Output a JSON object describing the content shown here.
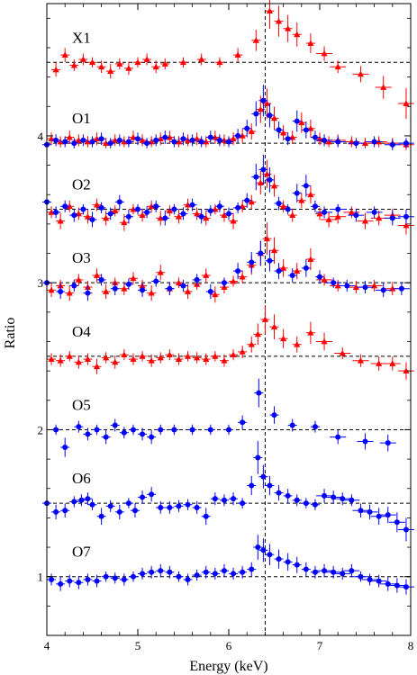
{
  "chart_data": {
    "type": "scatter",
    "xlabel": "Energy (keV)",
    "ylabel": "Ratio",
    "xlim": [
      4,
      8
    ],
    "ylim": [
      0.6,
      4.9
    ],
    "xticks": [
      4,
      5,
      6,
      7,
      8
    ],
    "yticks": [
      1,
      2,
      3,
      4
    ],
    "vertical_line_x": 6.4,
    "grid": false,
    "colors": {
      "red": "#ff0000",
      "blue": "#0000ff",
      "axis": "#000000"
    },
    "panels": [
      {
        "label": "X1",
        "baseline": 4.5,
        "series": [
          {
            "color": "red",
            "marker": "triangle",
            "x": [
              4.1,
              4.2,
              4.3,
              4.4,
              4.5,
              4.6,
              4.7,
              4.8,
              4.9,
              5.0,
              5.1,
              5.2,
              5.3,
              5.5,
              5.7,
              5.9,
              6.1,
              6.3,
              6.45,
              6.55,
              6.65,
              6.75,
              6.9,
              7.05,
              7.2,
              7.45,
              7.7,
              7.95
            ],
            "y": [
              4.45,
              4.55,
              4.48,
              4.52,
              4.5,
              4.47,
              4.44,
              4.49,
              4.46,
              4.5,
              4.52,
              4.47,
              4.49,
              4.5,
              4.52,
              4.5,
              4.55,
              4.65,
              4.85,
              4.78,
              4.73,
              4.69,
              4.63,
              4.56,
              4.47,
              4.42,
              4.33,
              4.22
            ]
          }
        ]
      },
      {
        "label": "O1",
        "baseline": 3.95,
        "series": [
          {
            "color": "red",
            "marker": "triangle",
            "x": [
              4.05,
              4.15,
              4.25,
              4.35,
              4.45,
              4.55,
              4.65,
              4.75,
              4.85,
              4.95,
              5.05,
              5.15,
              5.25,
              5.35,
              5.45,
              5.55,
              5.65,
              5.75,
              5.85,
              5.95,
              6.05,
              6.15,
              6.25,
              6.35,
              6.42,
              6.5,
              6.6,
              6.7,
              6.8,
              6.9,
              7.0,
              7.1,
              7.2,
              7.35,
              7.5,
              7.65,
              7.8,
              7.95
            ],
            "y": [
              3.98,
              3.96,
              3.99,
              3.97,
              3.96,
              3.98,
              3.95,
              3.97,
              3.96,
              3.99,
              3.97,
              3.96,
              3.98,
              3.99,
              3.96,
              3.97,
              3.98,
              3.96,
              3.99,
              3.97,
              3.98,
              4.0,
              4.03,
              4.18,
              4.22,
              4.12,
              4.02,
              3.99,
              4.09,
              4.05,
              3.98,
              3.96,
              3.97,
              3.96,
              3.95,
              3.96,
              3.95,
              3.94
            ]
          },
          {
            "color": "blue",
            "marker": "circle",
            "x": [
              4.0,
              4.1,
              4.2,
              4.3,
              4.4,
              4.5,
              4.6,
              4.7,
              4.8,
              4.9,
              5.0,
              5.1,
              5.2,
              5.3,
              5.4,
              5.5,
              5.6,
              5.7,
              5.8,
              5.9,
              6.0,
              6.1,
              6.2,
              6.3,
              6.38,
              6.45,
              6.55,
              6.65,
              6.75,
              6.85,
              6.95,
              7.05,
              7.2,
              7.4,
              7.6,
              7.8,
              7.95
            ],
            "y": [
              3.94,
              3.97,
              3.96,
              3.95,
              3.97,
              3.96,
              3.98,
              3.95,
              3.97,
              3.96,
              3.98,
              3.95,
              3.97,
              3.99,
              3.96,
              3.98,
              3.97,
              3.96,
              3.99,
              3.97,
              3.96,
              4.0,
              4.05,
              4.15,
              4.24,
              4.14,
              4.04,
              3.98,
              4.1,
              4.04,
              3.99,
              3.97,
              3.96,
              3.95,
              3.96,
              3.94,
              3.95
            ]
          }
        ]
      },
      {
        "label": "O2",
        "baseline": 3.5,
        "series": [
          {
            "color": "red",
            "marker": "triangle",
            "x": [
              4.05,
              4.15,
              4.25,
              4.35,
              4.45,
              4.55,
              4.65,
              4.75,
              4.85,
              4.95,
              5.05,
              5.15,
              5.25,
              5.35,
              5.45,
              5.55,
              5.65,
              5.75,
              5.85,
              5.95,
              6.05,
              6.15,
              6.25,
              6.35,
              6.42,
              6.5,
              6.6,
              6.7,
              6.8,
              6.9,
              7.0,
              7.1,
              7.2,
              7.35,
              7.5,
              7.65,
              7.8,
              7.95
            ],
            "y": [
              3.48,
              3.42,
              3.52,
              3.47,
              3.45,
              3.53,
              3.44,
              3.49,
              3.41,
              3.5,
              3.46,
              3.52,
              3.44,
              3.49,
              3.45,
              3.53,
              3.47,
              3.44,
              3.5,
              3.46,
              3.42,
              3.52,
              3.55,
              3.68,
              3.74,
              3.66,
              3.52,
              3.46,
              3.56,
              3.6,
              3.47,
              3.43,
              3.45,
              3.48,
              3.42,
              3.44,
              3.46,
              3.39
            ]
          },
          {
            "color": "blue",
            "marker": "circle",
            "x": [
              4.0,
              4.1,
              4.2,
              4.3,
              4.4,
              4.5,
              4.6,
              4.7,
              4.8,
              4.9,
              5.0,
              5.1,
              5.2,
              5.3,
              5.4,
              5.5,
              5.6,
              5.7,
              5.8,
              5.9,
              6.0,
              6.1,
              6.2,
              6.3,
              6.38,
              6.45,
              6.55,
              6.65,
              6.75,
              6.85,
              6.95,
              7.05,
              7.2,
              7.4,
              7.6,
              7.8,
              7.95
            ],
            "y": [
              3.55,
              3.48,
              3.52,
              3.46,
              3.5,
              3.43,
              3.51,
              3.47,
              3.55,
              3.45,
              3.5,
              3.48,
              3.52,
              3.44,
              3.5,
              3.47,
              3.53,
              3.45,
              3.49,
              3.52,
              3.47,
              3.51,
              3.56,
              3.72,
              3.77,
              3.7,
              3.54,
              3.5,
              3.61,
              3.66,
              3.52,
              3.48,
              3.5,
              3.46,
              3.48,
              3.44,
              3.45
            ]
          }
        ]
      },
      {
        "label": "O3",
        "baseline": 3.0,
        "series": [
          {
            "color": "red",
            "marker": "triangle",
            "x": [
              4.05,
              4.15,
              4.25,
              4.35,
              4.45,
              4.55,
              4.65,
              4.75,
              4.85,
              4.95,
              5.05,
              5.15,
              5.25,
              5.35,
              5.45,
              5.55,
              5.65,
              5.75,
              5.85,
              5.95,
              6.05,
              6.15,
              6.25,
              6.35,
              6.42,
              6.5,
              6.6,
              6.75,
              6.9,
              7.05,
              7.2,
              7.4,
              7.6,
              7.8
            ],
            "y": [
              2.95,
              2.98,
              2.93,
              3.02,
              2.97,
              3.05,
              2.94,
              3.0,
              2.96,
              3.03,
              2.98,
              2.93,
              3.07,
              2.96,
              3.0,
              2.94,
              2.99,
              3.05,
              2.92,
              2.97,
              3.01,
              3.04,
              3.12,
              3.2,
              3.3,
              3.22,
              3.1,
              3.08,
              3.16,
              3.02,
              2.98,
              2.97,
              2.98,
              2.96
            ]
          },
          {
            "color": "blue",
            "marker": "circle",
            "x": [
              4.0,
              4.15,
              4.3,
              4.45,
              4.6,
              4.75,
              4.9,
              5.05,
              5.2,
              5.35,
              5.5,
              5.65,
              5.8,
              5.95,
              6.1,
              6.25,
              6.35,
              6.45,
              6.55,
              6.7,
              6.85,
              7.0,
              7.15,
              7.3,
              7.5,
              7.7,
              7.9
            ],
            "y": [
              3.0,
              2.94,
              2.98,
              2.93,
              3.02,
              2.96,
              2.99,
              2.95,
              3.01,
              2.96,
              2.98,
              3.02,
              2.94,
              3.0,
              3.08,
              3.14,
              3.2,
              3.15,
              3.08,
              3.05,
              3.1,
              3.04,
              3.0,
              2.98,
              2.97,
              2.95,
              2.96
            ]
          }
        ]
      },
      {
        "label": "O4",
        "baseline": 2.5,
        "series": [
          {
            "color": "red",
            "marker": "triangle",
            "x": [
              4.05,
              4.15,
              4.25,
              4.35,
              4.45,
              4.55,
              4.65,
              4.75,
              4.85,
              4.95,
              5.05,
              5.15,
              5.25,
              5.35,
              5.45,
              5.55,
              5.65,
              5.75,
              5.85,
              5.95,
              6.05,
              6.15,
              6.25,
              6.32,
              6.4,
              6.5,
              6.6,
              6.75,
              6.9,
              7.05,
              7.25,
              7.45,
              7.65,
              7.8,
              7.95
            ],
            "y": [
              2.48,
              2.47,
              2.5,
              2.46,
              2.48,
              2.43,
              2.49,
              2.46,
              2.51,
              2.48,
              2.5,
              2.47,
              2.49,
              2.51,
              2.48,
              2.5,
              2.49,
              2.48,
              2.5,
              2.47,
              2.51,
              2.53,
              2.58,
              2.65,
              2.75,
              2.7,
              2.62,
              2.58,
              2.66,
              2.6,
              2.52,
              2.47,
              2.45,
              2.45,
              2.4
            ]
          }
        ]
      },
      {
        "label": "O5",
        "baseline": 2.0,
        "series": [
          {
            "color": "blue",
            "marker": "circle",
            "x": [
              4.1,
              4.2,
              4.35,
              4.45,
              4.55,
              4.65,
              4.75,
              4.85,
              4.95,
              5.05,
              5.15,
              5.25,
              5.4,
              5.6,
              5.8,
              6.0,
              6.15,
              6.33,
              6.5,
              6.7,
              6.95,
              7.2,
              7.5,
              7.75
            ],
            "y": [
              2.0,
              1.88,
              2.02,
              1.97,
              2.0,
              1.95,
              2.03,
              1.98,
              2.0,
              1.97,
              1.95,
              2.0,
              2.0,
              2.0,
              2.0,
              2.0,
              2.05,
              2.25,
              2.1,
              2.03,
              2.02,
              1.95,
              1.92,
              1.91
            ]
          }
        ]
      },
      {
        "label": "O6",
        "baseline": 1.5,
        "series": [
          {
            "color": "blue",
            "marker": "circle",
            "x": [
              4.0,
              4.1,
              4.2,
              4.3,
              4.38,
              4.45,
              4.5,
              4.6,
              4.7,
              4.8,
              4.9,
              4.97,
              5.05,
              5.15,
              5.25,
              5.35,
              5.45,
              5.55,
              5.65,
              5.75,
              5.85,
              5.95,
              6.05,
              6.15,
              6.25,
              6.32,
              6.38,
              6.45,
              6.55,
              6.65,
              6.75,
              6.85,
              6.95,
              7.05,
              7.15,
              7.25,
              7.35,
              7.45,
              7.55,
              7.65,
              7.75,
              7.85,
              7.95
            ],
            "y": [
              1.5,
              1.44,
              1.45,
              1.51,
              1.52,
              1.53,
              1.49,
              1.41,
              1.48,
              1.44,
              1.5,
              1.45,
              1.54,
              1.56,
              1.47,
              1.47,
              1.48,
              1.49,
              1.47,
              1.41,
              1.53,
              1.52,
              1.53,
              1.5,
              1.62,
              1.81,
              1.68,
              1.62,
              1.57,
              1.55,
              1.52,
              1.5,
              1.49,
              1.55,
              1.54,
              1.53,
              1.52,
              1.45,
              1.44,
              1.41,
              1.42,
              1.37,
              1.32
            ]
          }
        ]
      },
      {
        "label": "O7",
        "baseline": 1.0,
        "series": [
          {
            "color": "blue",
            "marker": "circle",
            "x": [
              4.05,
              4.15,
              4.25,
              4.35,
              4.45,
              4.55,
              4.65,
              4.75,
              4.85,
              4.95,
              5.05,
              5.15,
              5.25,
              5.35,
              5.45,
              5.55,
              5.65,
              5.75,
              5.85,
              5.95,
              6.05,
              6.15,
              6.25,
              6.32,
              6.38,
              6.45,
              6.55,
              6.65,
              6.75,
              6.85,
              6.95,
              7.05,
              7.15,
              7.25,
              7.35,
              7.45,
              7.55,
              7.65,
              7.75,
              7.85,
              7.95
            ],
            "y": [
              0.98,
              0.95,
              0.97,
              0.96,
              0.98,
              0.97,
              1.0,
              0.99,
              0.98,
              1.0,
              1.02,
              1.03,
              1.04,
              1.03,
              1.0,
              0.98,
              1.01,
              1.03,
              1.02,
              1.04,
              1.02,
              1.03,
              1.05,
              1.2,
              1.18,
              1.15,
              1.12,
              1.1,
              1.08,
              1.05,
              1.03,
              1.04,
              1.03,
              1.02,
              1.04,
              1.0,
              0.98,
              0.97,
              0.95,
              0.94,
              0.93
            ]
          }
        ]
      }
    ]
  }
}
